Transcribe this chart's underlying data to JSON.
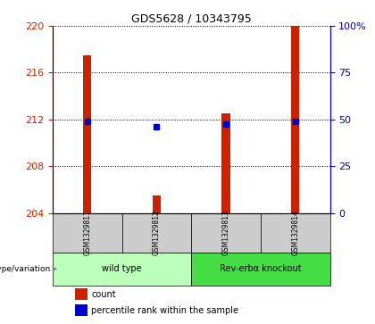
{
  "title": "GDS5628 / 10343795",
  "samples": [
    "GSM1329811",
    "GSM1329812",
    "GSM1329813",
    "GSM1329814"
  ],
  "bar_values": [
    217.5,
    205.5,
    212.5,
    220.0
  ],
  "percentile_values": [
    211.8,
    211.4,
    211.6,
    211.8
  ],
  "ylim_left": [
    204,
    220
  ],
  "yticks_left": [
    204,
    208,
    212,
    216,
    220
  ],
  "ylim_right": [
    0,
    100
  ],
  "yticks_right": [
    0,
    25,
    50,
    75,
    100
  ],
  "yticklabels_right": [
    "0",
    "25",
    "50",
    "75",
    "100%"
  ],
  "bar_color": "#cc2200",
  "marker_color": "#0000cc",
  "ax_left_tick_color": "#cc2200",
  "ax_right_tick_color": "#0000cc",
  "group_labels": [
    "wild type",
    "Rev-erbα knockout"
  ],
  "group_colors": [
    "#bbffbb",
    "#44dd44"
  ],
  "label_row_color": "#cccccc",
  "genotype_label": "genotype/variation",
  "legend_count_label": "count",
  "legend_percentile_label": "percentile rank within the sample",
  "bar_width": 0.12
}
